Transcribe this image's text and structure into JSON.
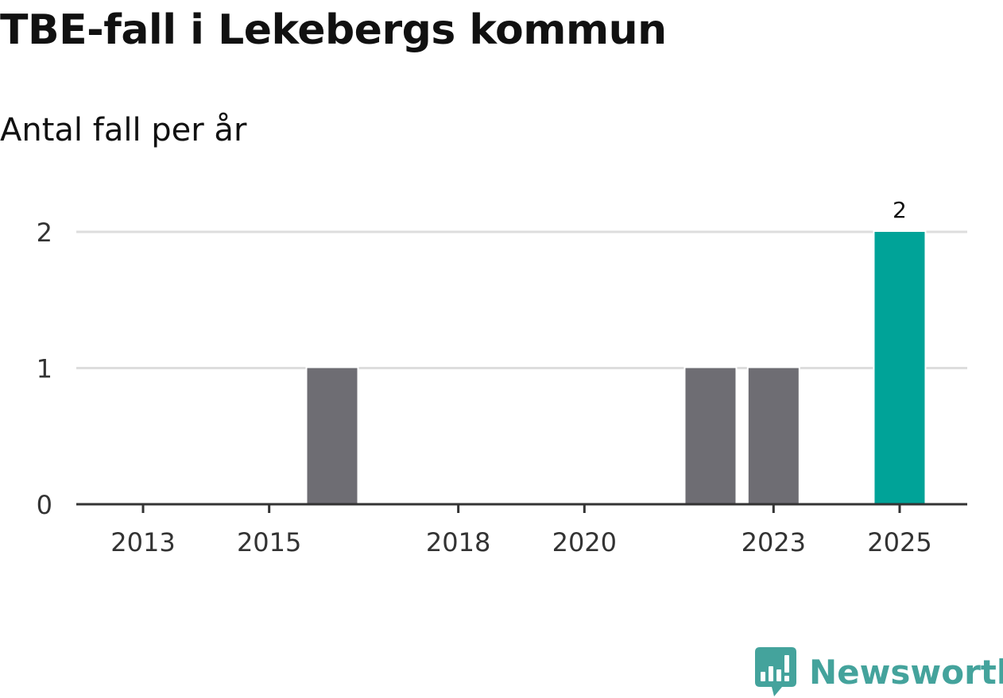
{
  "chart_data": {
    "type": "bar",
    "title": "TBE-fall i Lekebergs kommun",
    "subtitle": "Antal fall per år",
    "categories": [
      2013,
      2014,
      2015,
      2016,
      2017,
      2018,
      2019,
      2020,
      2021,
      2022,
      2023,
      2024,
      2025
    ],
    "values": [
      0,
      0,
      0,
      1,
      0,
      0,
      0,
      0,
      0,
      1,
      1,
      0,
      2
    ],
    "x_tick_labels": [
      "2013",
      "2015",
      "2018",
      "2020",
      "2023",
      "2025"
    ],
    "y_ticks": [
      0,
      1,
      2
    ],
    "ylim": [
      0,
      2
    ],
    "xlabel": "",
    "ylabel": "",
    "grid": true,
    "highlight_category": 2025,
    "highlight_label": "2",
    "colors": {
      "bar": "#6e6d73",
      "highlight": "#00a398",
      "grid": "#dddddd",
      "axis": "#333333"
    }
  },
  "brand": {
    "name": "Newsworthy",
    "icon": "newsworthy-logo-icon",
    "color": "#44a39c"
  }
}
